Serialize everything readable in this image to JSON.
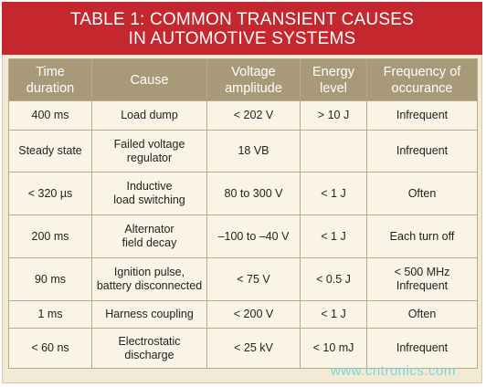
{
  "title": {
    "line1": "TABLE 1: COMMON TRANSIENT CAUSES",
    "line2": "IN AUTOMOTIVE SYSTEMS"
  },
  "headers": [
    [
      "Time",
      "duration"
    ],
    [
      "Cause"
    ],
    [
      "Voltage",
      "amplitude"
    ],
    [
      "Energy",
      "level"
    ],
    [
      "Frequency of",
      "occurance"
    ]
  ],
  "rows": [
    {
      "duration": [
        "400 ms"
      ],
      "cause": [
        "Load dump"
      ],
      "voltage": [
        "< 202 V"
      ],
      "energy": [
        "> 10 J"
      ],
      "frequency": [
        "Infrequent"
      ]
    },
    {
      "duration": [
        "Steady state"
      ],
      "cause": [
        "Failed voltage",
        "regulator"
      ],
      "voltage": [
        "18 VB"
      ],
      "energy": [
        ""
      ],
      "frequency": [
        "Infrequent"
      ]
    },
    {
      "duration": [
        "< 320 µs"
      ],
      "cause": [
        "Inductive",
        "load switching"
      ],
      "voltage": [
        "80 to 300 V"
      ],
      "energy": [
        "< 1 J"
      ],
      "frequency": [
        "Often"
      ]
    },
    {
      "duration": [
        "200 ms"
      ],
      "cause": [
        "Alternator",
        "field decay"
      ],
      "voltage": [
        "–100 to –40 V"
      ],
      "energy": [
        "< 1 J"
      ],
      "frequency": [
        "Each turn off"
      ]
    },
    {
      "duration": [
        "90 ms"
      ],
      "cause": [
        "Ignition pulse,",
        "battery disconnected"
      ],
      "voltage": [
        "< 75 V"
      ],
      "energy": [
        "< 0.5 J"
      ],
      "frequency": [
        "< 500 MHz",
        "Infrequent"
      ]
    },
    {
      "duration": [
        "1 ms"
      ],
      "cause": [
        "Harness coupling"
      ],
      "voltage": [
        "< 200 V"
      ],
      "energy": [
        "< 1 J"
      ],
      "frequency": [
        "Often"
      ]
    },
    {
      "duration": [
        "< 60 ns"
      ],
      "cause": [
        "Electrostatic",
        "discharge"
      ],
      "voltage": [
        "< 25 kV"
      ],
      "energy": [
        "< 10 mJ"
      ],
      "frequency": [
        "Infrequent"
      ]
    }
  ],
  "watermark": "www.cntronics.com",
  "colors": {
    "title_bar": "#c4282e",
    "header_bg": "#a89a79",
    "cell_bg": "#f9f4e6",
    "watermark": "#79d7d7"
  }
}
